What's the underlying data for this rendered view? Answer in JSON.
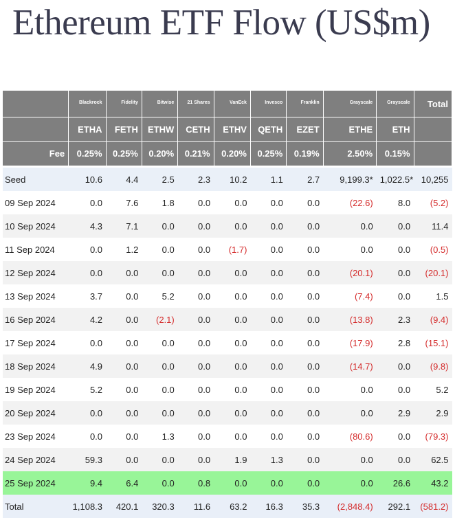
{
  "title": "Ethereum ETF Flow (US$m)",
  "issuers": [
    "Blackrock",
    "Fidelity",
    "Bitwise",
    "21 Shares",
    "VanEck",
    "Invesco",
    "Franklin",
    "Grayscale",
    "Grayscale"
  ],
  "total_header": "Total",
  "tickers": [
    "ETHA",
    "FETH",
    "ETHW",
    "CETH",
    "ETHV",
    "QETH",
    "EZET",
    "ETHE",
    "ETH"
  ],
  "fee_label": "Fee",
  "fees": [
    "0.25%",
    "0.25%",
    "0.20%",
    "0.21%",
    "0.20%",
    "0.25%",
    "0.19%",
    "2.50%",
    "0.15%"
  ],
  "colors": {
    "header_bg": "#7f7f7f",
    "negative": "#d42a2a",
    "highlight": "#98f598",
    "seed_bg": "#eaf0f8",
    "alt_bg": "#f2f2f2"
  },
  "rows": [
    {
      "label": "Seed",
      "values": [
        "10.6",
        "4.4",
        "2.5",
        "2.3",
        "10.2",
        "1.1",
        "2.7",
        "9,199.3*",
        "1,022.5*",
        "10,255"
      ],
      "style": "seed"
    },
    {
      "label": "09 Sep 2024",
      "values": [
        "0.0",
        "7.6",
        "1.8",
        "0.0",
        "0.0",
        "0.0",
        "0.0",
        "(22.6)",
        "8.0",
        "(5.2)"
      ],
      "style": "plain"
    },
    {
      "label": "10 Sep 2024",
      "values": [
        "4.3",
        "7.1",
        "0.0",
        "0.0",
        "0.0",
        "0.0",
        "0.0",
        "0.0",
        "0.0",
        "11.4"
      ],
      "style": "alt"
    },
    {
      "label": "11 Sep 2024",
      "values": [
        "0.0",
        "1.2",
        "0.0",
        "0.0",
        "(1.7)",
        "0.0",
        "0.0",
        "0.0",
        "0.0",
        "(0.5)"
      ],
      "style": "plain"
    },
    {
      "label": "12 Sep 2024",
      "values": [
        "0.0",
        "0.0",
        "0.0",
        "0.0",
        "0.0",
        "0.0",
        "0.0",
        "(20.1)",
        "0.0",
        "(20.1)"
      ],
      "style": "alt"
    },
    {
      "label": "13 Sep 2024",
      "values": [
        "3.7",
        "0.0",
        "5.2",
        "0.0",
        "0.0",
        "0.0",
        "0.0",
        "(7.4)",
        "0.0",
        "1.5"
      ],
      "style": "plain"
    },
    {
      "label": "16 Sep 2024",
      "values": [
        "4.2",
        "0.0",
        "(2.1)",
        "0.0",
        "0.0",
        "0.0",
        "0.0",
        "(13.8)",
        "2.3",
        "(9.4)"
      ],
      "style": "alt"
    },
    {
      "label": "17 Sep 2024",
      "values": [
        "0.0",
        "0.0",
        "0.0",
        "0.0",
        "0.0",
        "0.0",
        "0.0",
        "(17.9)",
        "2.8",
        "(15.1)"
      ],
      "style": "plain"
    },
    {
      "label": "18 Sep 2024",
      "values": [
        "4.9",
        "0.0",
        "0.0",
        "0.0",
        "0.0",
        "0.0",
        "0.0",
        "(14.7)",
        "0.0",
        "(9.8)"
      ],
      "style": "alt"
    },
    {
      "label": "19 Sep 2024",
      "values": [
        "5.2",
        "0.0",
        "0.0",
        "0.0",
        "0.0",
        "0.0",
        "0.0",
        "0.0",
        "0.0",
        "5.2"
      ],
      "style": "plain"
    },
    {
      "label": "20 Sep 2024",
      "values": [
        "0.0",
        "0.0",
        "0.0",
        "0.0",
        "0.0",
        "0.0",
        "0.0",
        "0.0",
        "2.9",
        "2.9"
      ],
      "style": "alt"
    },
    {
      "label": "23 Sep 2024",
      "values": [
        "0.0",
        "0.0",
        "1.3",
        "0.0",
        "0.0",
        "0.0",
        "0.0",
        "(80.6)",
        "0.0",
        "(79.3)"
      ],
      "style": "plain"
    },
    {
      "label": "24 Sep 2024",
      "values": [
        "59.3",
        "0.0",
        "0.0",
        "0.0",
        "1.9",
        "1.3",
        "0.0",
        "0.0",
        "0.0",
        "62.5"
      ],
      "style": "alt"
    },
    {
      "label": "25 Sep 2024",
      "values": [
        "9.4",
        "6.4",
        "0.0",
        "0.8",
        "0.0",
        "0.0",
        "0.0",
        "0.0",
        "26.6",
        "43.2"
      ],
      "style": "hl"
    },
    {
      "label": "Total",
      "values": [
        "1,108.3",
        "420.1",
        "320.3",
        "11.6",
        "63.2",
        "16.3",
        "35.3",
        "(2,848.4)",
        "292.1",
        "(581.2)"
      ],
      "style": "total"
    }
  ]
}
